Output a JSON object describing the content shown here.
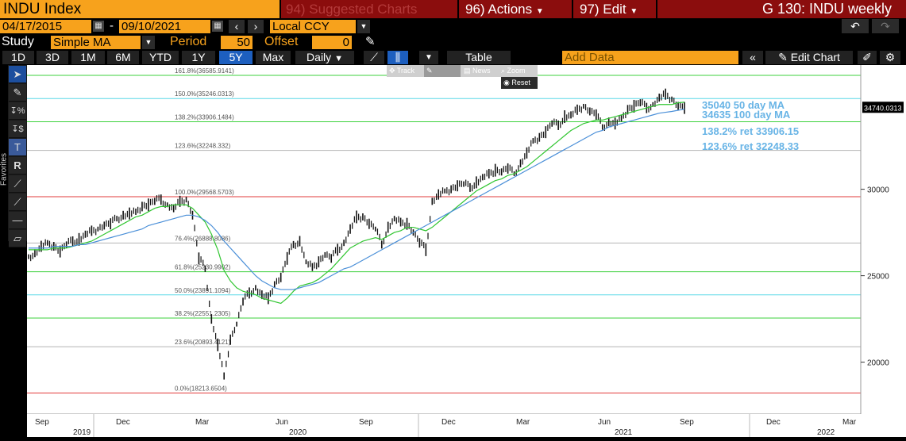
{
  "header": {
    "security": "INDU Index",
    "menu_suggested": "94) Suggested Charts",
    "menu_actions": "96) Actions",
    "menu_edit": "97) Edit",
    "title": "G 130: INDU weekly"
  },
  "range": {
    "start_date": "04/17/2015",
    "dash": "-",
    "end_date": "09/10/2021",
    "currency": "Local CCY"
  },
  "study": {
    "label": "Study",
    "type": "Simple MA",
    "period_label": "Period",
    "period": "50",
    "offset_label": "Offset",
    "offset": "0"
  },
  "periods": [
    "1D",
    "3D",
    "1M",
    "6M",
    "YTD",
    "1Y",
    "5Y",
    "Max"
  ],
  "selected_period": "5Y",
  "frequency": "Daily",
  "table_label": "Table",
  "add_data_placeholder": "Add Data",
  "edit_chart_label": "Edit Chart",
  "popup": {
    "items": [
      "Track",
      "Annotate",
      "News",
      "Zoom"
    ],
    "reset": "Reset"
  },
  "favorites_label": "Favorites",
  "chart_data": {
    "type": "line",
    "y_axis_ticks": [
      20000,
      25000,
      30000
    ],
    "ylim": [
      17000,
      37000
    ],
    "last_price": "34740.0313",
    "x_tick_labels": [
      "Sep",
      "Dec",
      "Mar",
      "Jun",
      "Sep",
      "Dec",
      "Mar",
      "Jun",
      "Sep",
      "Dec",
      "Mar"
    ],
    "year_labels": [
      "2019",
      "2020",
      "2021",
      "2022"
    ],
    "fib_levels": [
      {
        "label": "161.8%(36585.9141)",
        "value": 36585.9141,
        "color": "#3cd13c"
      },
      {
        "label": "150.0%(35246.0313)",
        "value": 35246.0313,
        "color": "#5ad8e8"
      },
      {
        "label": "138.2%(33906.1484)",
        "value": 33906.1484,
        "color": "#3cd13c"
      },
      {
        "label": "123.6%(32248.332)",
        "value": 32248.332,
        "color": "#b5b5b5"
      },
      {
        "label": "100.0%(29568.5703)",
        "value": 29568.5703,
        "color": "#e23b3b"
      },
      {
        "label": "76.4%(26888.8086)",
        "value": 26888.8086,
        "color": "#b5b5b5"
      },
      {
        "label": "61.8%(25230.9902)",
        "value": 25230.9902,
        "color": "#3cd13c"
      },
      {
        "label": "50.0%(23891.1094)",
        "value": 23891.1094,
        "color": "#5ad8e8"
      },
      {
        "label": "38.2%(22551.2305)",
        "value": 22551.2305,
        "color": "#3cd13c"
      },
      {
        "label": "23.6%(20893.4121)",
        "value": 20893.4121,
        "color": "#b5b5b5"
      },
      {
        "label": "0.0%(18213.6504)",
        "value": 18213.6504,
        "color": "#e23b3b"
      }
    ],
    "legend": [
      {
        "text": "35040 50 day MA",
        "color": "#68b4e6"
      },
      {
        "text": "34635 100 day MA",
        "color": "#68b4e6"
      },
      {
        "text": "138.2% ret 33906.15",
        "color": "#68b4e6"
      },
      {
        "text": "123.6% ret 32248.33",
        "color": "#68b4e6"
      }
    ],
    "series": [
      {
        "values": [
          26100,
          26300,
          26700,
          26900,
          26700,
          26400,
          26800,
          27000,
          27100,
          27400,
          27600,
          27700,
          27900,
          28000,
          28300,
          28500,
          28600,
          28700,
          29000,
          29100,
          29300,
          29400,
          29100,
          28900,
          29300,
          29400,
          28500,
          26000,
          25400,
          22500,
          21000,
          19200,
          21300,
          22200,
          23500,
          24000,
          24300,
          23900,
          23700,
          24500,
          24900,
          26000,
          26800,
          27000,
          25800,
          25500,
          25800,
          26200,
          26000,
          26500,
          26900,
          27700,
          28400,
          28400,
          28000,
          27700,
          26800,
          27800,
          28300,
          28100,
          28000,
          27500,
          26900,
          26500,
          29300,
          29700,
          29900,
          30000,
          30200,
          30300,
          30100,
          30400,
          30700,
          30900,
          31100,
          31000,
          31200,
          30900,
          31500,
          32100,
          32800,
          33000,
          33300,
          33800,
          33700,
          34200,
          34300,
          34600,
          34800,
          34500,
          34300,
          33600,
          33900,
          33800,
          34100,
          34600,
          34800,
          35000,
          34700,
          34900,
          35300,
          35500,
          35200,
          34800,
          34700
        ]
      },
      {
        "values": [
          26500,
          26500,
          26500,
          26500,
          26600,
          26600,
          26600,
          26700,
          26800,
          26900,
          27000,
          27200,
          27400,
          27600,
          27800,
          28000,
          28200,
          28400,
          28500,
          28700,
          28900,
          29000,
          29000,
          29100,
          29100,
          29100,
          28900,
          28500,
          28100,
          27400,
          26500,
          25300,
          24700,
          24300,
          24100,
          24000,
          23900,
          23700,
          23600,
          23500,
          23400,
          23700,
          24100,
          24400,
          24500,
          24600,
          24800,
          25100,
          25400,
          25800,
          26200,
          26600,
          26800,
          27000,
          27100,
          27200,
          27100,
          27300,
          27500,
          27600,
          27800,
          27800,
          27700,
          27600,
          27800,
          28100,
          28400,
          28700,
          29000,
          29300,
          29600,
          29900,
          30100,
          30300,
          30500,
          30600,
          30800,
          30900,
          31100,
          31300,
          31600,
          31900,
          32200,
          32500,
          32800,
          33100,
          33400,
          33600,
          33800,
          33900,
          34000,
          34000,
          34100,
          34200,
          34300,
          34400,
          34500,
          34600,
          34700,
          34800,
          34900,
          34900,
          34900,
          35000,
          35040
        ]
      },
      {
        "values": [
          26600,
          26600,
          26600,
          26600,
          26700,
          26700,
          26700,
          26700,
          26800,
          26800,
          26900,
          27000,
          27100,
          27200,
          27300,
          27400,
          27500,
          27600,
          27700,
          27900,
          28000,
          28100,
          28200,
          28300,
          28400,
          28500,
          28500,
          28400,
          28200,
          27900,
          27500,
          27000,
          26600,
          26200,
          25800,
          25400,
          25000,
          24700,
          24500,
          24300,
          24200,
          24200,
          24200,
          24300,
          24400,
          24500,
          24600,
          24800,
          25000,
          25200,
          25400,
          25500,
          25700,
          25900,
          26100,
          26300,
          26500,
          26700,
          26900,
          27100,
          27300,
          27500,
          27700,
          27900,
          28100,
          28300,
          28500,
          28700,
          28900,
          29100,
          29300,
          29500,
          29700,
          29900,
          30100,
          30300,
          30500,
          30700,
          30900,
          31100,
          31300,
          31500,
          31700,
          31900,
          32100,
          32300,
          32500,
          32700,
          32900,
          33100,
          33300,
          33400,
          33600,
          33700,
          33800,
          33900,
          34000,
          34100,
          34200,
          34300,
          34400,
          34450,
          34500,
          34570,
          34635
        ]
      }
    ],
    "series_colors": [
      "#111111",
      "#31c631",
      "#4a8fd8"
    ]
  }
}
